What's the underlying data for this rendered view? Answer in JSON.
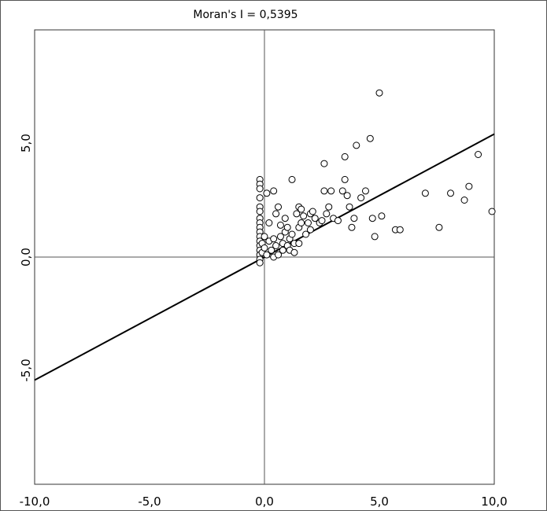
{
  "chart_data": {
    "type": "scatter",
    "title": "Moran's I = 0,5395",
    "xlabel": "",
    "ylabel": "",
    "xlim": [
      -10,
      10
    ],
    "ylim": [
      -10,
      10
    ],
    "grid": false,
    "xticks": [
      "-10,0",
      "-5,0",
      "0,0",
      "5,0",
      "10,0"
    ],
    "yticks": [
      "5,0",
      "0,0",
      "-5,0"
    ],
    "regression_line": {
      "slope": 0.5395,
      "intercept": 0
    },
    "reference_lines": {
      "x": 0,
      "y": 0
    },
    "points": [
      [
        -0.2,
        3.4
      ],
      [
        -0.2,
        3.2
      ],
      [
        -0.2,
        3.0
      ],
      [
        -0.2,
        2.6
      ],
      [
        -0.2,
        2.2
      ],
      [
        -0.2,
        2.0
      ],
      [
        -0.2,
        1.7
      ],
      [
        -0.2,
        1.5
      ],
      [
        -0.2,
        1.3
      ],
      [
        -0.2,
        1.1
      ],
      [
        -0.2,
        0.9
      ],
      [
        -0.2,
        0.7
      ],
      [
        -0.2,
        0.5
      ],
      [
        -0.2,
        0.3
      ],
      [
        -0.2,
        0.1
      ],
      [
        -0.2,
        -0.1
      ],
      [
        -0.2,
        -0.25
      ],
      [
        -0.1,
        0.2
      ],
      [
        -0.1,
        0.6
      ],
      [
        0.0,
        0.9
      ],
      [
        0.0,
        0.4
      ],
      [
        0.1,
        0.1
      ],
      [
        0.1,
        2.8
      ],
      [
        0.2,
        1.5
      ],
      [
        0.2,
        0.7
      ],
      [
        0.3,
        0.3
      ],
      [
        0.4,
        0.8
      ],
      [
        0.4,
        0.0
      ],
      [
        0.4,
        2.9
      ],
      [
        0.5,
        1.9
      ],
      [
        0.5,
        0.5
      ],
      [
        0.6,
        0.1
      ],
      [
        0.6,
        2.2
      ],
      [
        0.7,
        1.4
      ],
      [
        0.7,
        0.9
      ],
      [
        0.8,
        0.6
      ],
      [
        0.8,
        0.3
      ],
      [
        0.9,
        1.1
      ],
      [
        0.9,
        1.7
      ],
      [
        1.0,
        1.3
      ],
      [
        1.0,
        0.5
      ],
      [
        1.1,
        0.8
      ],
      [
        1.1,
        0.3
      ],
      [
        1.2,
        1.0
      ],
      [
        1.2,
        3.4
      ],
      [
        1.3,
        0.6
      ],
      [
        1.3,
        0.2
      ],
      [
        1.4,
        1.9
      ],
      [
        1.5,
        1.3
      ],
      [
        1.5,
        2.2
      ],
      [
        1.5,
        0.6
      ],
      [
        1.6,
        2.1
      ],
      [
        1.6,
        1.5
      ],
      [
        1.7,
        1.8
      ],
      [
        1.8,
        1.0
      ],
      [
        1.9,
        1.5
      ],
      [
        2.0,
        1.9
      ],
      [
        2.0,
        1.2
      ],
      [
        2.1,
        2.0
      ],
      [
        2.2,
        1.7
      ],
      [
        2.4,
        1.5
      ],
      [
        2.5,
        1.6
      ],
      [
        2.6,
        2.9
      ],
      [
        2.6,
        4.1
      ],
      [
        2.7,
        1.9
      ],
      [
        2.8,
        2.2
      ],
      [
        2.9,
        2.9
      ],
      [
        3.0,
        1.7
      ],
      [
        3.2,
        1.6
      ],
      [
        3.4,
        2.9
      ],
      [
        3.5,
        4.4
      ],
      [
        3.5,
        3.4
      ],
      [
        3.6,
        2.7
      ],
      [
        3.7,
        2.2
      ],
      [
        3.8,
        1.3
      ],
      [
        3.9,
        1.7
      ],
      [
        4.0,
        4.9
      ],
      [
        4.2,
        2.6
      ],
      [
        4.4,
        2.9
      ],
      [
        4.6,
        5.2
      ],
      [
        4.7,
        1.7
      ],
      [
        4.8,
        0.9
      ],
      [
        5.0,
        7.2
      ],
      [
        5.1,
        1.8
      ],
      [
        5.7,
        1.2
      ],
      [
        5.9,
        1.2
      ],
      [
        7.0,
        2.8
      ],
      [
        7.6,
        1.3
      ],
      [
        8.1,
        2.8
      ],
      [
        8.7,
        2.5
      ],
      [
        8.9,
        3.1
      ],
      [
        9.3,
        4.5
      ],
      [
        9.9,
        2.0
      ]
    ]
  }
}
